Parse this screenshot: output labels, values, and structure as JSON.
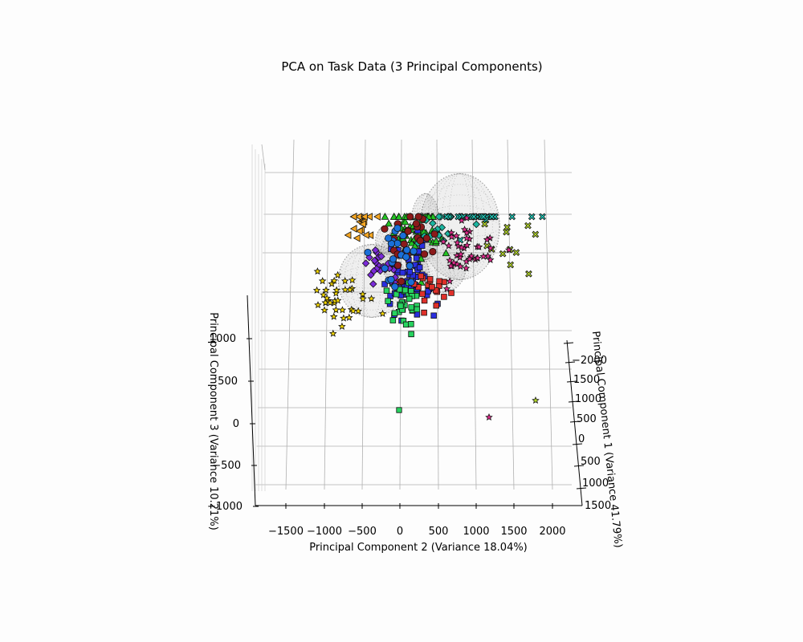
{
  "chart_data": {
    "type": "scatter",
    "title": "PCA on Task Data (3 Principal Components)",
    "projection": "3d",
    "grid": true,
    "legend": "none",
    "axes": {
      "x": {
        "label": "Principal Component 2 (Variance 18.04%)",
        "ticks": [
          "−1500",
          "−1000",
          "−500",
          "0",
          "500",
          "1000",
          "1500",
          "2000"
        ],
        "range": [
          -1800,
          2300
        ]
      },
      "y": {
        "label": "Principal Component 3 (Variance 10.21%)",
        "ticks": [
          "−1000",
          "−500",
          "0",
          "500",
          "1000"
        ],
        "range": [
          -1000,
          1400
        ]
      },
      "z": {
        "label": "Principal Component 1 (Variance 41.79%)",
        "ticks": [
          "−2000",
          "−1500",
          "−1000",
          "−500",
          "0",
          "500",
          "1000",
          "1500"
        ],
        "range": [
          -2200,
          1700
        ]
      }
    },
    "ellipsoids": [
      {
        "center": [
          -400,
          400
        ],
        "radii": [
          800,
          550
        ],
        "tilt": 0
      },
      {
        "center": [
          -150,
          750
        ],
        "radii": [
          350,
          250
        ],
        "tilt": 40
      },
      {
        "center": [
          300,
          850
        ],
        "radii": [
          350,
          500
        ],
        "tilt": 0
      },
      {
        "center": [
          750,
          850
        ],
        "radii": [
          950,
          800
        ],
        "tilt": 0
      },
      {
        "center": [
          200,
          500
        ],
        "radii": [
          250,
          420
        ],
        "tilt": -15
      },
      {
        "center": [
          500,
          550
        ],
        "radii": [
          600,
          450
        ],
        "tilt": -15
      },
      {
        "center": [
          -100,
          600
        ],
        "radii": [
          350,
          380
        ],
        "tilt": 0
      }
    ],
    "series": [
      {
        "marker": "triangle-up",
        "color": "#22c422",
        "cx": 150,
        "cy": 850,
        "sx": 260,
        "sy": 300,
        "n": 70,
        "seed": 11
      },
      {
        "marker": "triangle-left",
        "color": "#f5a623",
        "cx": -550,
        "cy": 880,
        "sx": 200,
        "sy": 130,
        "n": 18,
        "seed": 12
      },
      {
        "marker": "star",
        "color": "#f2d500",
        "cx": -900,
        "cy": 250,
        "sx": 350,
        "sy": 180,
        "n": 40,
        "seed": 13
      },
      {
        "marker": "square",
        "color": "#2a2ee0",
        "cx": 100,
        "cy": 450,
        "sx": 280,
        "sy": 250,
        "n": 60,
        "seed": 14
      },
      {
        "marker": "square",
        "color": "#27d35f",
        "cx": 0,
        "cy": 200,
        "sx": 200,
        "sy": 180,
        "n": 35,
        "seed": 15
      },
      {
        "marker": "square",
        "color": "#e0302a",
        "cx": 350,
        "cy": 300,
        "sx": 280,
        "sy": 180,
        "n": 20,
        "seed": 16
      },
      {
        "marker": "diamond",
        "color": "#1bb5a0",
        "cx": 500,
        "cy": 900,
        "sx": 300,
        "sy": 200,
        "n": 25,
        "seed": 17
      },
      {
        "marker": "diamond",
        "color": "#7a2ad8",
        "cx": -300,
        "cy": 500,
        "sx": 200,
        "sy": 160,
        "n": 22,
        "seed": 18
      },
      {
        "marker": "x",
        "color": "#1fc9b8",
        "cx": 1100,
        "cy": 1100,
        "sx": 400,
        "sy": 250,
        "n": 25,
        "seed": 19
      },
      {
        "marker": "x",
        "color": "#b4d82a",
        "cx": 1400,
        "cy": 700,
        "sx": 350,
        "sy": 200,
        "n": 12,
        "seed": 20
      },
      {
        "marker": "star",
        "color": "#e02a8c",
        "cx": 900,
        "cy": 650,
        "sx": 350,
        "sy": 200,
        "n": 45,
        "seed": 21
      },
      {
        "marker": "circle",
        "color": "#8b1a1a",
        "cx": 100,
        "cy": 800,
        "sx": 300,
        "sy": 250,
        "n": 25,
        "seed": 22
      },
      {
        "marker": "circle",
        "color": "#1a6fd8",
        "cx": -100,
        "cy": 600,
        "sx": 250,
        "sy": 200,
        "n": 20,
        "seed": 23
      }
    ]
  }
}
